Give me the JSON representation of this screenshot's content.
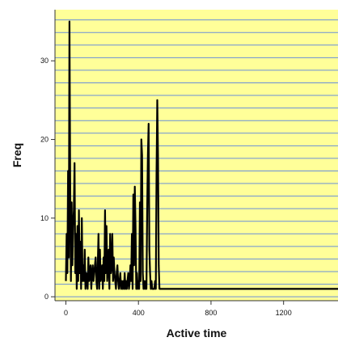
{
  "chart_data": {
    "type": "line",
    "title": "",
    "xlabel": "Active time",
    "ylabel": "Freq",
    "xlim": [
      -60,
      1500
    ],
    "ylim": [
      -0.5,
      36.5
    ],
    "xticks": [
      0,
      400,
      800,
      1200
    ],
    "xtick_labels": [
      "0",
      "400",
      "800",
      "1200"
    ],
    "yticks": [
      0,
      10,
      20,
      30
    ],
    "ytick_labels": [
      "0",
      "10",
      "20",
      "30"
    ],
    "grid": "horizontal",
    "grid_step": 1.6,
    "colors": {
      "plot_background": "#FFFF99",
      "grid": "#6A8FD8",
      "line": "#000000",
      "axis": "#333333"
    },
    "series": [
      {
        "x": [
          0,
          4,
          8,
          12,
          16,
          20,
          24,
          28,
          32,
          36,
          40,
          44,
          48,
          52,
          56,
          60,
          64,
          68,
          72,
          76,
          80,
          84,
          88,
          92,
          96,
          100,
          104,
          108,
          112,
          116,
          120,
          124,
          128,
          132,
          136,
          140,
          144,
          148,
          152,
          156,
          160,
          164,
          168,
          172,
          176,
          180,
          184,
          188,
          192,
          196,
          200,
          204,
          208,
          212,
          216,
          220,
          224,
          228,
          232,
          236,
          240,
          244,
          248,
          252,
          256,
          260,
          264,
          268,
          272,
          276,
          280,
          284,
          288,
          292,
          296,
          300,
          304,
          308,
          312,
          316,
          320,
          324,
          328,
          332,
          336,
          340,
          344,
          348,
          352,
          356,
          360,
          364,
          368,
          372,
          376,
          380,
          384,
          388,
          392,
          396,
          400,
          404,
          408,
          412,
          416,
          420,
          424,
          428,
          432,
          436,
          440,
          444,
          448,
          452,
          456,
          460,
          464,
          468,
          472,
          476,
          480,
          484,
          488,
          492,
          496,
          500,
          504,
          508,
          512,
          516,
          520,
          524,
          528,
          532,
          536,
          540,
          544,
          548,
          552,
          556,
          560,
          564,
          568,
          572,
          576,
          580,
          584,
          588,
          592,
          596,
          600,
          604,
          608,
          612,
          616,
          620,
          624,
          628,
          632,
          1500
        ],
        "y": [
          2,
          8,
          3,
          16,
          5,
          35,
          15,
          2,
          12,
          4,
          9,
          11,
          17,
          3,
          8,
          1,
          9,
          2,
          11,
          3,
          7,
          1,
          10,
          2,
          4,
          2,
          6,
          1,
          3,
          2,
          1,
          5,
          2,
          3,
          4,
          1,
          3,
          4,
          2,
          3,
          4,
          5,
          2,
          1,
          4,
          8,
          1,
          6,
          2,
          3,
          4,
          1,
          5,
          2,
          11,
          3,
          9,
          2,
          4,
          6,
          1,
          8,
          3,
          4,
          8,
          2,
          5,
          3,
          2,
          1,
          3,
          4,
          2,
          1,
          2,
          3,
          1,
          2,
          1,
          2,
          1,
          3,
          1,
          2,
          1,
          2,
          3,
          1,
          2,
          4,
          2,
          8,
          1,
          13,
          4,
          14,
          9,
          1,
          3,
          1,
          2,
          1,
          12,
          2,
          20,
          18,
          3,
          1,
          2,
          1,
          2,
          1,
          11,
          18,
          22,
          6,
          3,
          1,
          2,
          1,
          1,
          1,
          1,
          2,
          1,
          16,
          25,
          18,
          4,
          1,
          1,
          1,
          1,
          1,
          1,
          1,
          1,
          1,
          1,
          1,
          1,
          1,
          1,
          1,
          1,
          1,
          1,
          1,
          1,
          1,
          1,
          1,
          1,
          1,
          1,
          1,
          1,
          1,
          1,
          1
        ]
      }
    ]
  }
}
